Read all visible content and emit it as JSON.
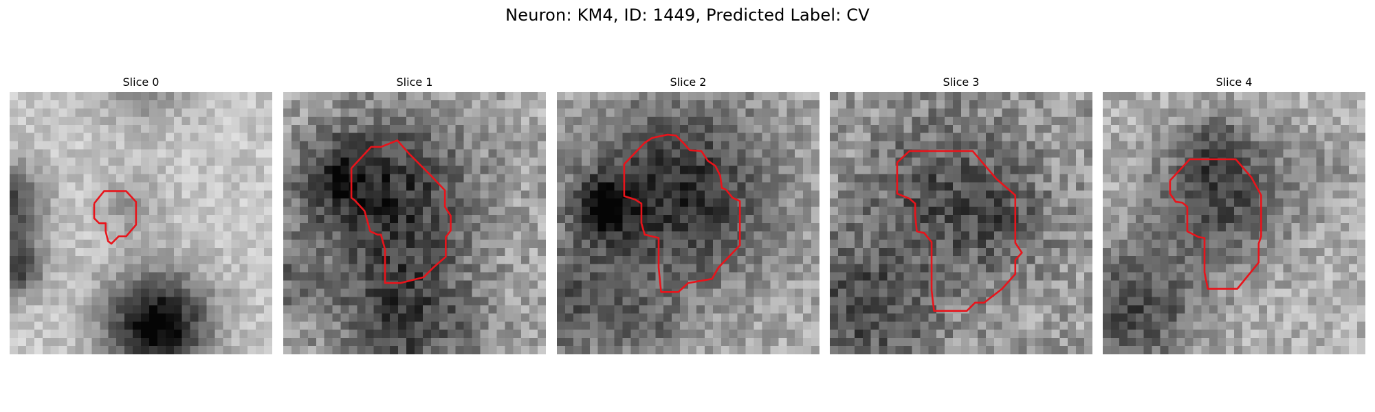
{
  "figure": {
    "title": "Neuron: KM4, ID: 1449, Predicted Label: CV"
  },
  "panels": [
    {
      "title": "Slice 0",
      "grid": 32,
      "seed": 11,
      "base_level": 0.78,
      "noise": 0.1,
      "blobs": [
        {
          "cx": 18.0,
          "cy": 28.5,
          "r": 4.6,
          "depth": 0.78
        },
        {
          "cx": -1.0,
          "cy": 13.5,
          "r": 3.4,
          "depth": 0.6
        },
        {
          "cx": 0.5,
          "cy": 21.5,
          "r": 2.5,
          "depth": 0.55
        },
        {
          "cx": 15.0,
          "cy": 14.0,
          "r": 2.8,
          "depth": 0.18
        },
        {
          "cx": 16.0,
          "cy": -2.0,
          "r": 4.0,
          "depth": 0.3
        }
      ],
      "contour": [
        [
          10.3,
          13.6
        ],
        [
          11.5,
          12.1
        ],
        [
          14.2,
          12.1
        ],
        [
          15.4,
          13.4
        ],
        [
          15.4,
          16.2
        ],
        [
          14.2,
          17.6
        ],
        [
          13.3,
          17.6
        ],
        [
          12.4,
          18.5
        ],
        [
          12.0,
          18.2
        ],
        [
          11.7,
          17.0
        ],
        [
          11.7,
          16.0
        ],
        [
          10.9,
          16.0
        ],
        [
          10.3,
          15.4
        ],
        [
          10.3,
          13.6
        ]
      ]
    },
    {
      "title": "Slice 1",
      "grid": 32,
      "seed": 23,
      "base_level": 0.66,
      "noise": 0.16,
      "blobs": [
        {
          "cx": 13.0,
          "cy": 12.5,
          "r": 7.2,
          "depth": 0.45
        },
        {
          "cx": 15.0,
          "cy": 28.0,
          "r": 6.0,
          "depth": 0.4
        },
        {
          "cx": 6.5,
          "cy": 10.5,
          "r": 3.2,
          "depth": 0.3
        },
        {
          "cx": 0.0,
          "cy": 23.0,
          "r": 3.5,
          "depth": 0.2
        }
      ],
      "contour": [
        [
          8.3,
          9.3
        ],
        [
          10.7,
          6.7
        ],
        [
          11.9,
          6.7
        ],
        [
          13.9,
          5.9
        ],
        [
          15.4,
          7.6
        ],
        [
          18.0,
          10.2
        ],
        [
          19.7,
          12.0
        ],
        [
          19.7,
          14.0
        ],
        [
          20.4,
          15.1
        ],
        [
          20.4,
          16.9
        ],
        [
          19.8,
          17.7
        ],
        [
          19.8,
          20.1
        ],
        [
          18.3,
          21.4
        ],
        [
          17.1,
          22.6
        ],
        [
          15.9,
          22.9
        ],
        [
          14.3,
          23.3
        ],
        [
          12.4,
          23.3
        ],
        [
          12.4,
          19.2
        ],
        [
          11.9,
          17.4
        ],
        [
          11.5,
          17.4
        ],
        [
          10.6,
          17.0
        ],
        [
          9.9,
          14.5
        ],
        [
          8.7,
          13.2
        ],
        [
          8.3,
          12.9
        ],
        [
          8.3,
          9.3
        ]
      ]
    },
    {
      "title": "Slice 2",
      "grid": 32,
      "seed": 37,
      "base_level": 0.68,
      "noise": 0.14,
      "blobs": [
        {
          "cx": 15.0,
          "cy": 12.5,
          "r": 8.5,
          "depth": 0.5
        },
        {
          "cx": 5.5,
          "cy": 14.0,
          "r": 2.6,
          "depth": 0.5
        },
        {
          "cx": 1.5,
          "cy": 26.0,
          "r": 5.0,
          "depth": 0.32
        },
        {
          "cx": 11.0,
          "cy": 29.0,
          "r": 3.0,
          "depth": 0.2
        }
      ],
      "contour": [
        [
          8.2,
          8.8
        ],
        [
          10.7,
          6.2
        ],
        [
          11.6,
          5.6
        ],
        [
          13.5,
          5.2
        ],
        [
          14.5,
          5.3
        ],
        [
          15.5,
          6.3
        ],
        [
          16.2,
          7.1
        ],
        [
          17.6,
          7.2
        ],
        [
          18.4,
          8.4
        ],
        [
          19.3,
          9.0
        ],
        [
          19.9,
          10.2
        ],
        [
          20.1,
          11.7
        ],
        [
          20.6,
          11.9
        ],
        [
          21.4,
          12.9
        ],
        [
          22.3,
          13.3
        ],
        [
          22.3,
          18.7
        ],
        [
          19.7,
          21.4
        ],
        [
          18.9,
          22.8
        ],
        [
          16.0,
          23.3
        ],
        [
          14.8,
          24.4
        ],
        [
          12.7,
          24.4
        ],
        [
          12.4,
          21.4
        ],
        [
          12.4,
          17.8
        ],
        [
          10.7,
          17.4
        ],
        [
          10.3,
          16.0
        ],
        [
          10.3,
          13.6
        ],
        [
          9.5,
          13.1
        ],
        [
          8.2,
          12.7
        ],
        [
          8.2,
          8.8
        ]
      ]
    },
    {
      "title": "Slice 3",
      "grid": 32,
      "seed": 53,
      "base_level": 0.62,
      "noise": 0.17,
      "blobs": [
        {
          "cx": 14.5,
          "cy": 12.0,
          "r": 7.0,
          "depth": 0.3
        },
        {
          "cx": 4.0,
          "cy": 26.5,
          "r": 6.5,
          "depth": 0.32
        },
        {
          "cx": 22.0,
          "cy": 16.0,
          "r": 4.0,
          "depth": 0.15
        }
      ],
      "contour": [
        [
          8.2,
          8.6
        ],
        [
          9.7,
          7.2
        ],
        [
          17.4,
          7.2
        ],
        [
          20.3,
          10.6
        ],
        [
          22.6,
          12.6
        ],
        [
          22.6,
          18.4
        ],
        [
          23.4,
          19.6
        ],
        [
          22.6,
          20.5
        ],
        [
          22.6,
          22.2
        ],
        [
          21.0,
          24.0
        ],
        [
          18.8,
          25.7
        ],
        [
          17.7,
          25.7
        ],
        [
          16.7,
          26.7
        ],
        [
          12.7,
          26.7
        ],
        [
          12.4,
          24.2
        ],
        [
          12.4,
          18.3
        ],
        [
          11.5,
          17.2
        ],
        [
          10.6,
          17.0
        ],
        [
          10.4,
          15.0
        ],
        [
          10.4,
          13.6
        ],
        [
          9.7,
          13.0
        ],
        [
          8.2,
          12.4
        ],
        [
          8.2,
          8.6
        ]
      ]
    },
    {
      "title": "Slice 4",
      "grid": 32,
      "seed": 71,
      "base_level": 0.7,
      "noise": 0.14,
      "blobs": [
        {
          "cx": 14.5,
          "cy": 12.5,
          "r": 6.0,
          "depth": 0.42
        },
        {
          "cx": 4.0,
          "cy": 26.5,
          "r": 5.5,
          "depth": 0.42
        },
        {
          "cx": 14.0,
          "cy": 7.0,
          "r": 3.0,
          "depth": 0.15
        },
        {
          "cx": 27.0,
          "cy": 10.0,
          "r": 3.0,
          "depth": 0.1
        }
      ],
      "contour": [
        [
          8.2,
          10.8
        ],
        [
          10.6,
          8.2
        ],
        [
          16.2,
          8.2
        ],
        [
          18.1,
          10.4
        ],
        [
          19.3,
          12.6
        ],
        [
          19.3,
          17.6
        ],
        [
          19.0,
          18.5
        ],
        [
          19.0,
          20.8
        ],
        [
          16.4,
          24.0
        ],
        [
          12.8,
          24.0
        ],
        [
          12.4,
          22.0
        ],
        [
          12.4,
          17.8
        ],
        [
          11.7,
          17.7
        ],
        [
          10.3,
          17.0
        ],
        [
          10.3,
          14.0
        ],
        [
          9.7,
          13.5
        ],
        [
          8.9,
          13.4
        ],
        [
          8.2,
          12.4
        ],
        [
          8.2,
          10.8
        ]
      ]
    }
  ],
  "style": {
    "contour_color": "#e8141b",
    "title_color": "#000000"
  }
}
